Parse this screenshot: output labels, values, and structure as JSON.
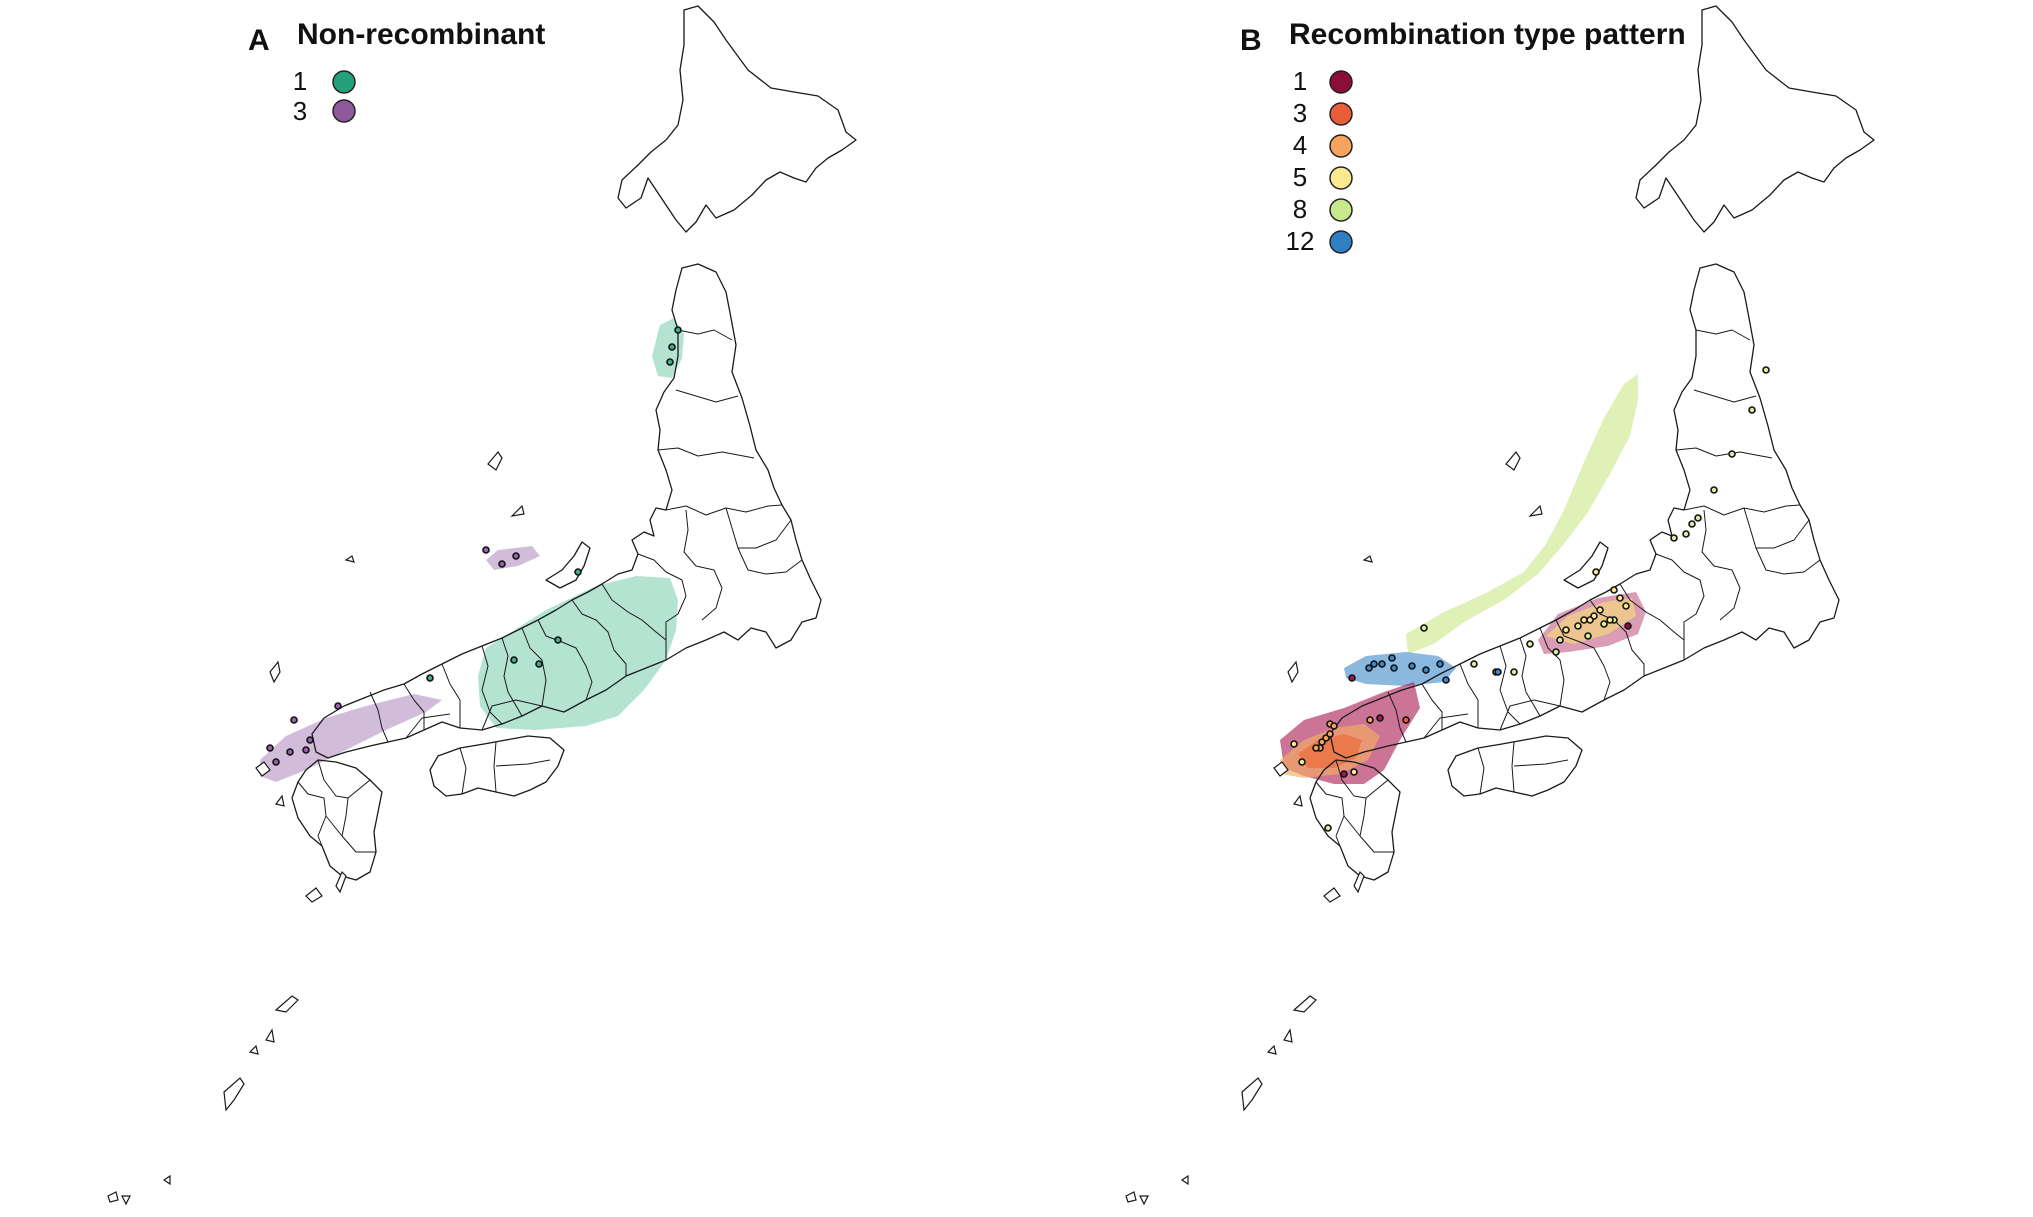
{
  "panels": [
    {
      "id": "A",
      "letter": "A",
      "title": "Non-recombinant",
      "legend": [
        {
          "label": "1",
          "color": "#23a27a"
        },
        {
          "label": "3",
          "color": "#8e5a9c"
        }
      ],
      "clusters": [
        {
          "label": "1",
          "color": "#58c29b",
          "region": "Kinki-Chubu"
        },
        {
          "label": "1",
          "color": "#58c29b",
          "region": "Akita"
        },
        {
          "label": "3",
          "color": "#a47bb5",
          "region": "Chugoku-Kyushu"
        },
        {
          "label": "3",
          "color": "#a47bb5",
          "region": "Noto"
        }
      ]
    },
    {
      "id": "B",
      "letter": "B",
      "title": "Recombination type pattern",
      "legend": [
        {
          "label": "1",
          "color": "#8c0d3a"
        },
        {
          "label": "3",
          "color": "#ea5d3a"
        },
        {
          "label": "4",
          "color": "#f4a45c"
        },
        {
          "label": "5",
          "color": "#fbe98f"
        },
        {
          "label": "8",
          "color": "#c7e88d"
        },
        {
          "label": "12",
          "color": "#2f7fc1"
        }
      ],
      "clusters": [
        {
          "label": "8",
          "color": "#bfe36f",
          "region": "Tohoku-Chubu"
        },
        {
          "label": "5",
          "color": "#f8e377",
          "region": "Kanto"
        },
        {
          "label": "1",
          "color": "#b0245a",
          "region": "Kanto"
        },
        {
          "label": "12",
          "color": "#3d88c9",
          "region": "Kinki"
        },
        {
          "label": "1",
          "color": "#a8174f",
          "region": "Kyushu"
        },
        {
          "label": "3",
          "color": "#ec6b3c",
          "region": "Kyushu"
        },
        {
          "label": "4",
          "color": "#f6ad62",
          "region": "Kyushu"
        }
      ]
    }
  ]
}
